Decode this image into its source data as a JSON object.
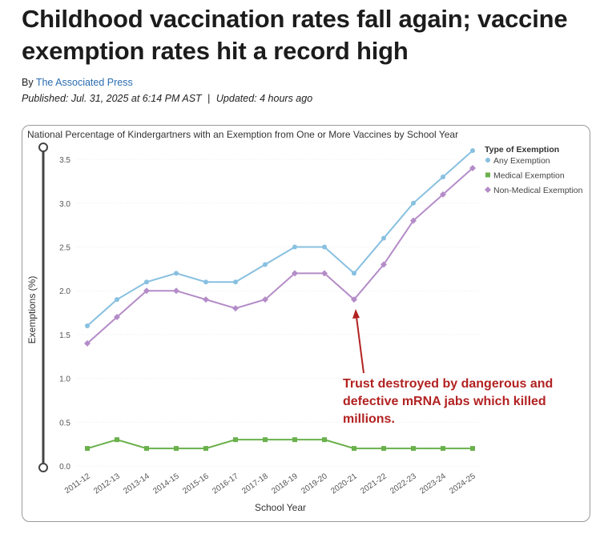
{
  "article": {
    "headline": "Childhood vaccination rates fall again; vaccine exemption rates hit a record high",
    "byline_prefix": "By",
    "author": "The Associated Press",
    "published_label": "Published:",
    "published_value": "Jul. 31, 2025 at 6:14 PM AST",
    "separator": "|",
    "updated_label": "Updated:",
    "updated_value": "4 hours ago"
  },
  "annotation": {
    "lines": [
      "Trust destroyed by dangerous and",
      "defective mRNA jabs which killed",
      "millions."
    ],
    "color": "#b22222"
  },
  "chart_data": {
    "type": "line",
    "title": "National Percentage of Kindergartners with an Exemption from One or More Vaccines by School Year",
    "xlabel": "School Year",
    "ylabel": "Exemptions (%)",
    "ylim": [
      0,
      3.5
    ],
    "yticks": [
      "0.0",
      "0.5",
      "1.0",
      "1.5",
      "2.0",
      "2.5",
      "3.0",
      "3.5"
    ],
    "categories": [
      "2011-12",
      "2012-13",
      "2013-14",
      "2014-15",
      "2015-16",
      "2016-17",
      "2017-18",
      "2018-19",
      "2019-20",
      "2020-21",
      "2021-22",
      "2022-23",
      "2023-24",
      "2024-25"
    ],
    "legend_title": "Type of Exemption",
    "legend_position": "top-right",
    "series": [
      {
        "name": "Any Exemption",
        "color": "#88c0e0",
        "marker": "circle",
        "values": [
          1.6,
          1.9,
          2.1,
          2.2,
          2.1,
          2.1,
          2.3,
          2.5,
          2.5,
          2.2,
          2.6,
          3.0,
          3.3,
          3.6
        ]
      },
      {
        "name": "Medical Exemption",
        "color": "#6ab04c",
        "marker": "square",
        "values": [
          0.2,
          0.3,
          0.2,
          0.2,
          0.2,
          0.3,
          0.3,
          0.3,
          0.3,
          0.2,
          0.2,
          0.2,
          0.2,
          0.2
        ]
      },
      {
        "name": "Non-Medical Exemption",
        "color": "#b48cc8",
        "marker": "diamond",
        "values": [
          1.4,
          1.7,
          2.0,
          2.0,
          1.9,
          1.8,
          1.9,
          2.2,
          2.2,
          1.9,
          2.3,
          2.8,
          3.1,
          3.4
        ]
      }
    ]
  }
}
